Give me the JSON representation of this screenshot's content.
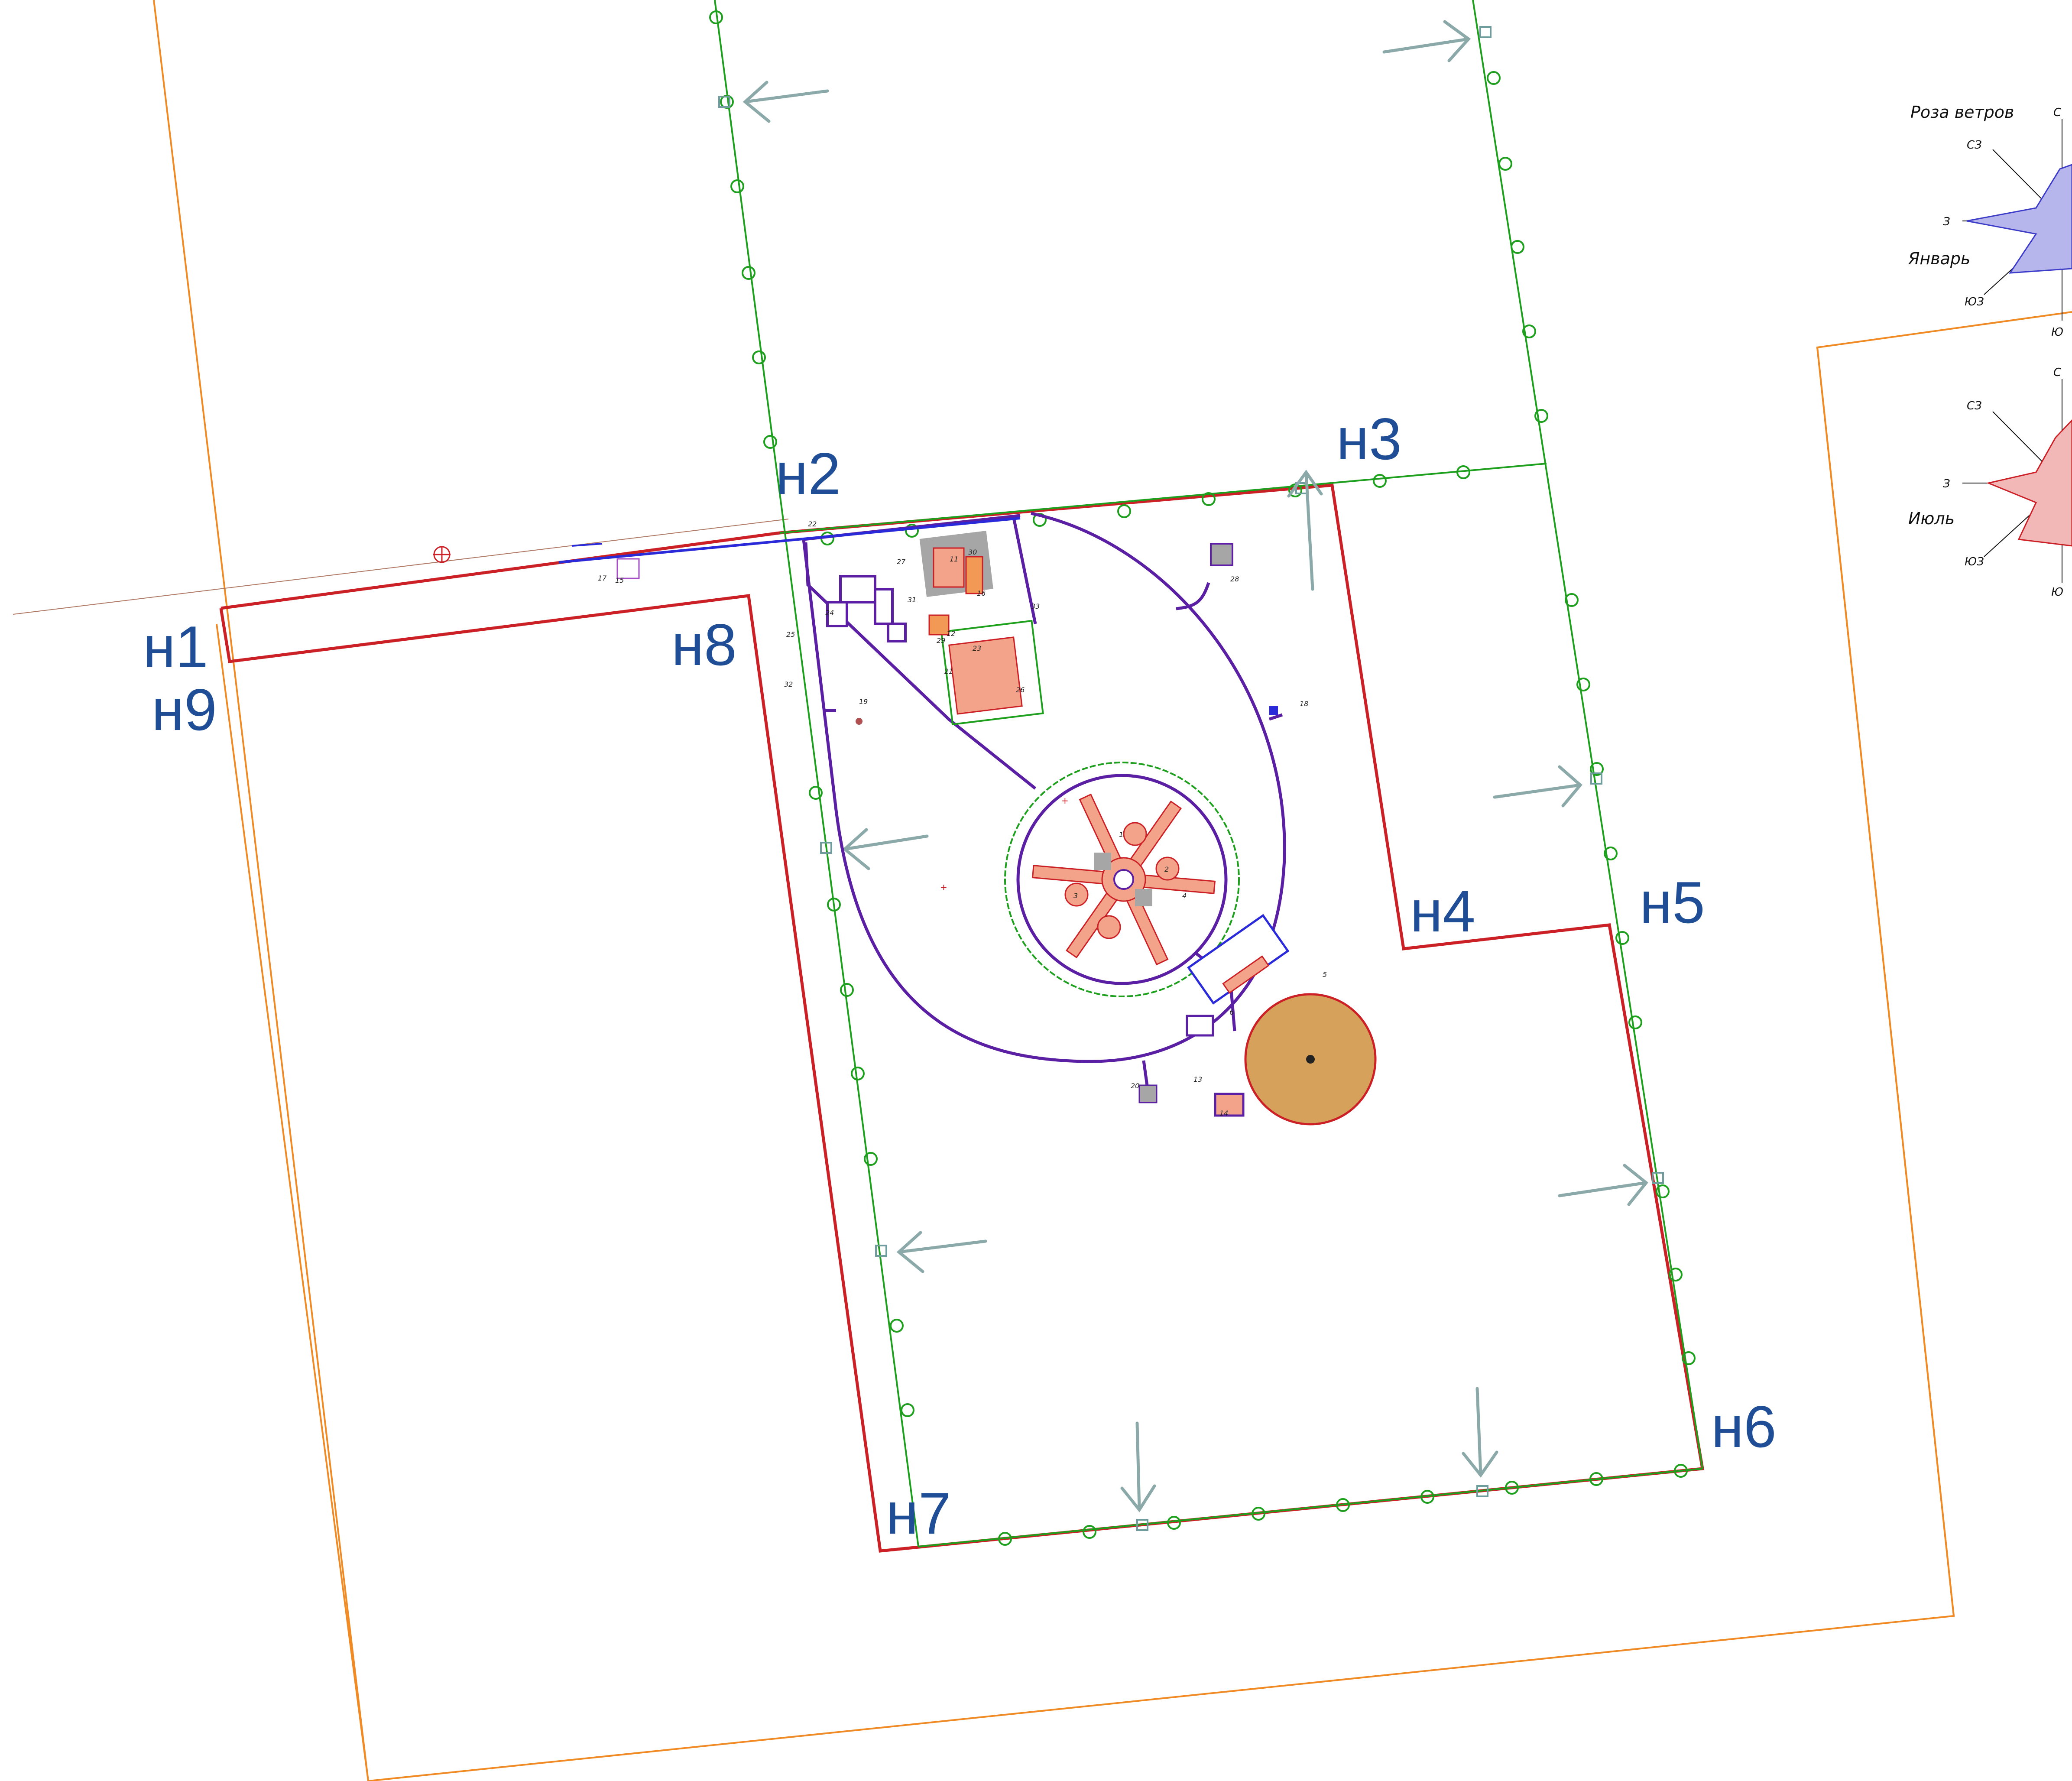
{
  "boundary_points": {
    "n1": "н1",
    "n2": "н2",
    "n3": "н3",
    "n4": "н4",
    "n5": "н5",
    "n6": "н6",
    "n7": "н7",
    "n8": "н8",
    "n9": "н9"
  },
  "wind_rose": {
    "title": "Роза ветров",
    "january": "Январь",
    "july": "Июль",
    "dirs": {
      "n": "С",
      "nw": "СЗ",
      "w": "З",
      "sw": "ЮЗ",
      "s": "Ю"
    }
  },
  "facility_numbers": {
    "n1": "1",
    "n2": "2",
    "n3": "3",
    "n4": "4",
    "n5": "5",
    "n6": "6",
    "n11": "11",
    "n12": "12",
    "n13": "13",
    "n14": "14",
    "n15": "15",
    "n16": "16",
    "n17": "17",
    "n18": "18",
    "n19": "19",
    "n20": "20",
    "n21": "21",
    "n22": "22",
    "n23": "23",
    "n24": "24",
    "n25": "25",
    "n26": "26",
    "n27": "27",
    "n28": "28",
    "n29": "29",
    "n30": "30",
    "n31": "31",
    "n32": "32",
    "n33": "33"
  },
  "colors": {
    "land_boundary": "#cc2027",
    "outer_boundary": "#ef8a24",
    "fence": "#1ea01e",
    "road": "#5a1fa3",
    "water_main": "#2a2ad8",
    "arrow": "#8ba9a8",
    "label": "#1f4e96",
    "building_fill": "#f2a38a",
    "storage_fill": "#d6a15a"
  }
}
